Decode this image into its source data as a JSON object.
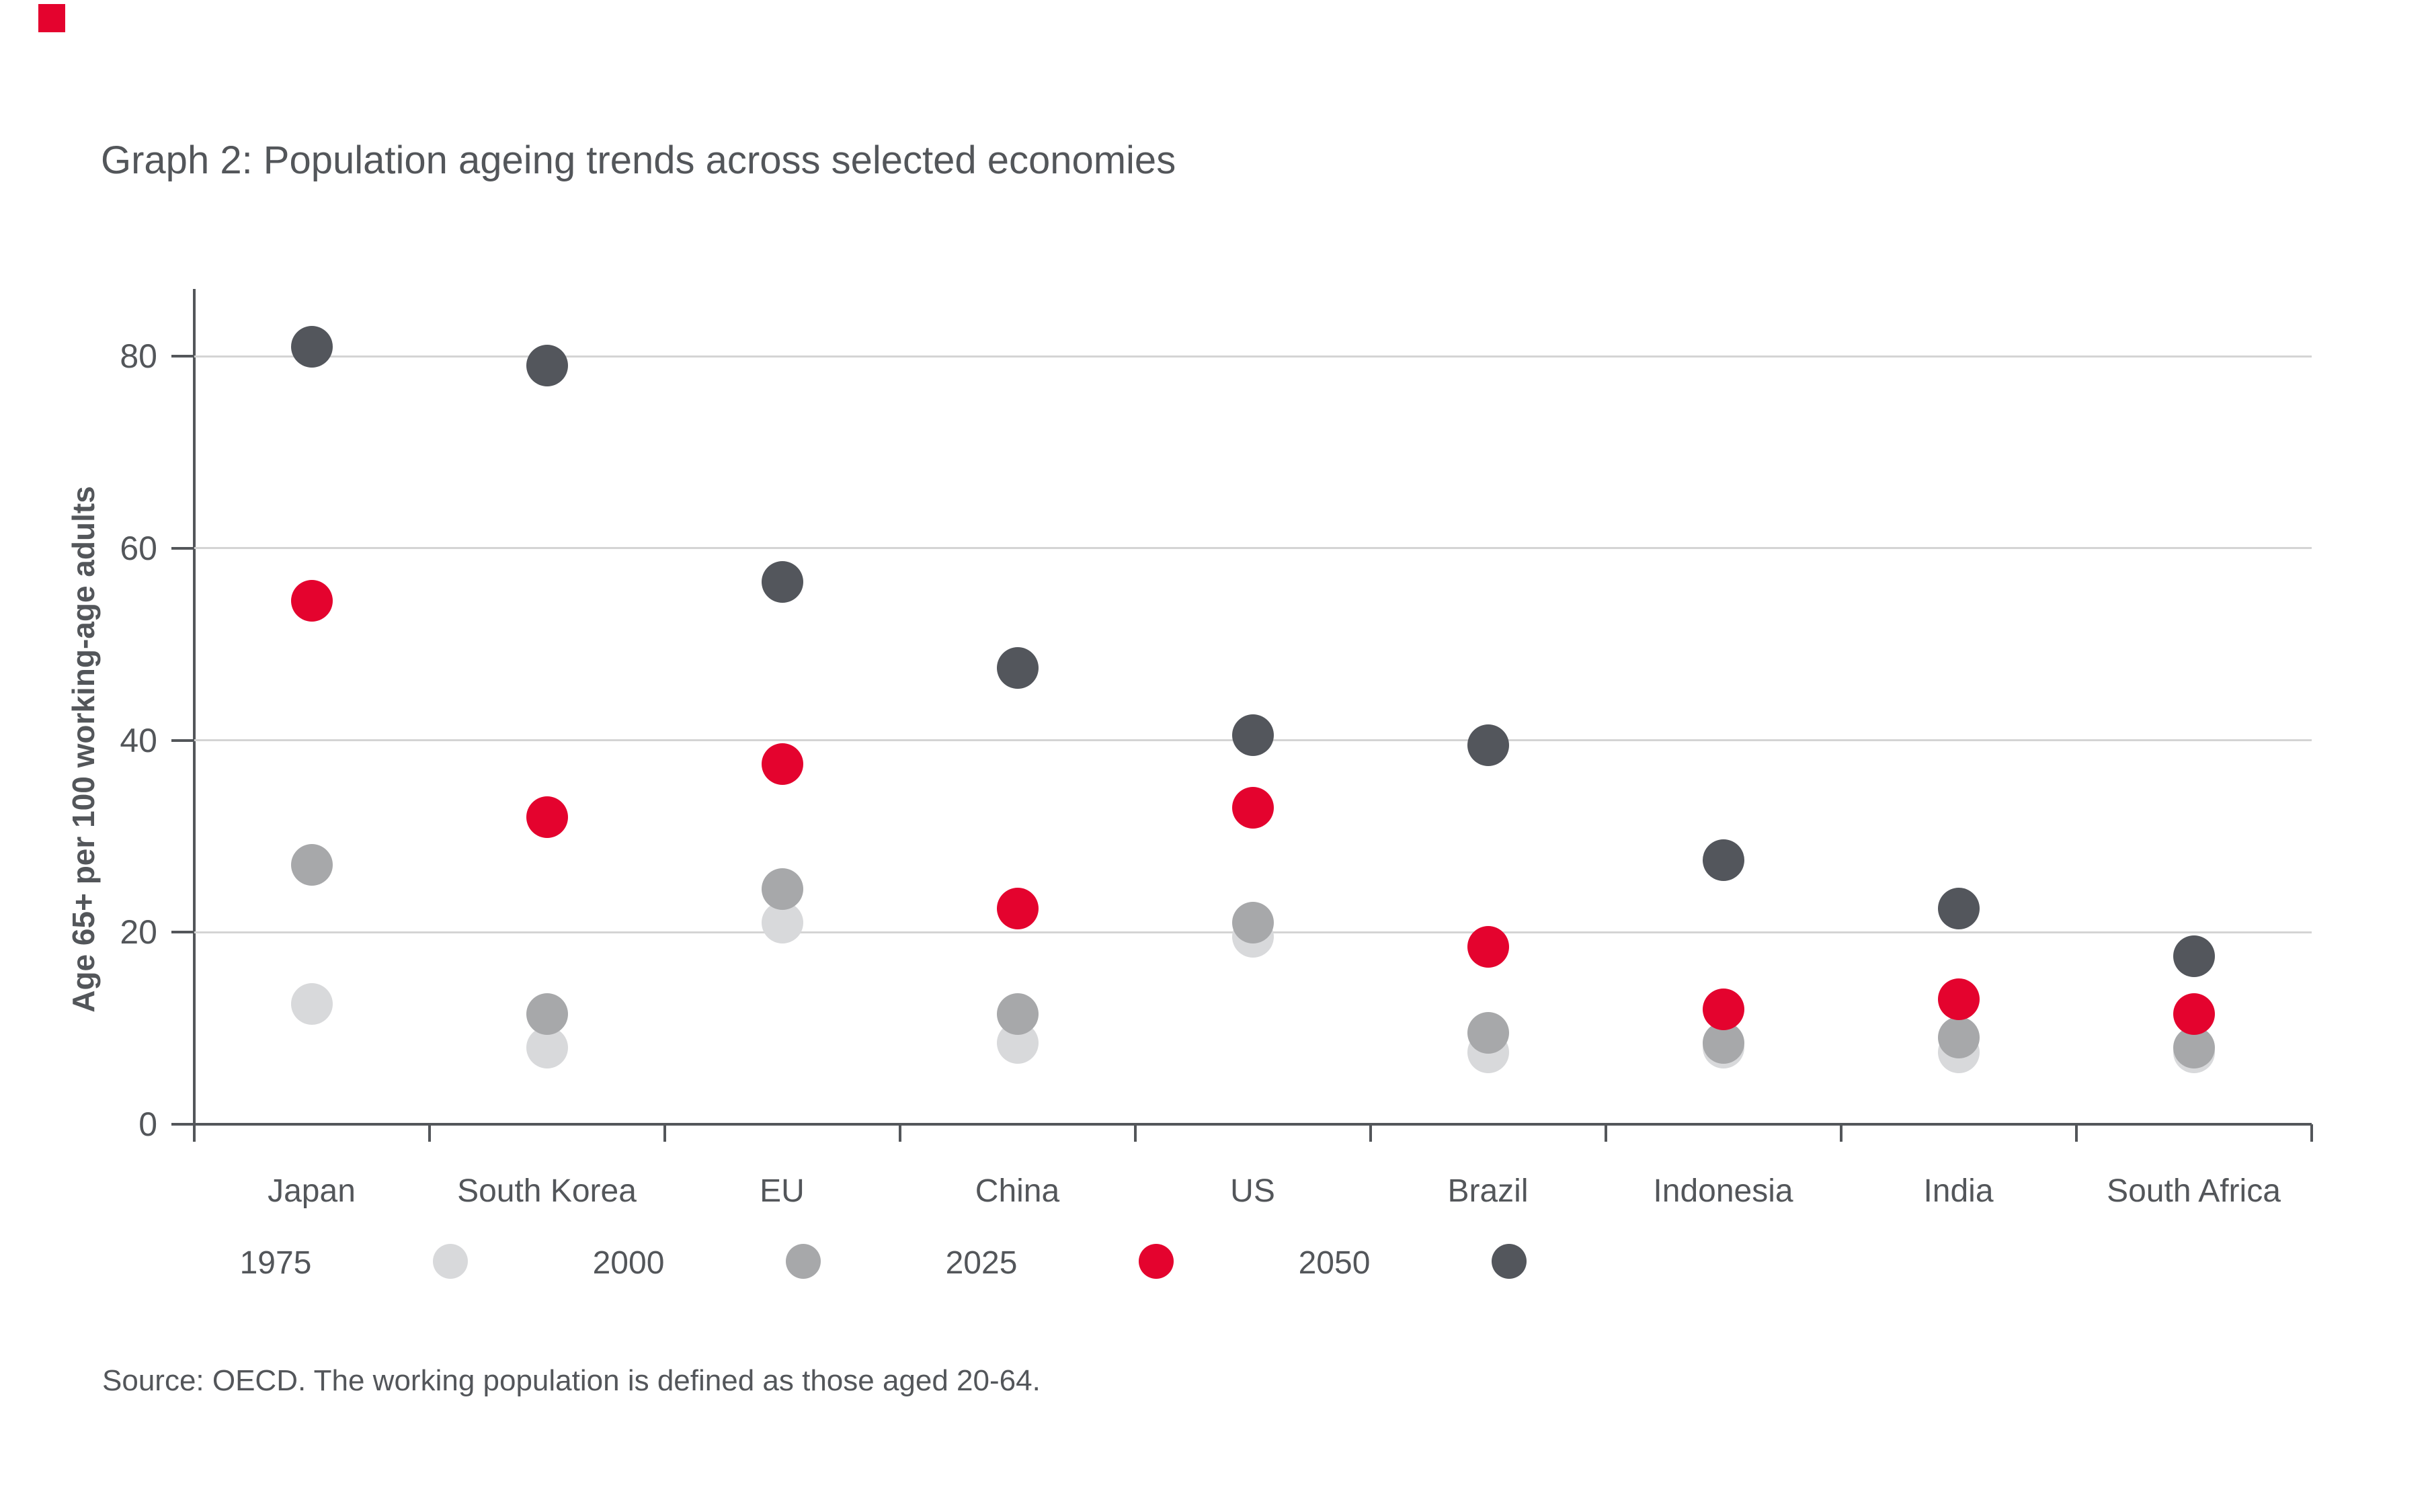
{
  "page": {
    "title": "Graph 2: Population ageing trends across selected economies",
    "source": "Source: OECD. The working population is defined as those aged 20-64.",
    "brand_color": "#E4032E",
    "text_color": "#53565A"
  },
  "chart_data": {
    "type": "scatter",
    "title": "Graph 2: Population ageing trends across selected economies",
    "xlabel": "",
    "ylabel": "Age 65+ per 100 working-age adults",
    "ylim": [
      0,
      87
    ],
    "yticks": [
      0,
      20,
      40,
      60,
      80
    ],
    "grid": "horizontal",
    "gridline_color": "#D4D4D4",
    "axis_color": "#53565A",
    "legend_position": "bottom",
    "categories": [
      "Japan",
      "South Korea",
      "EU",
      "China",
      "US",
      "Brazil",
      "Indonesia",
      "India",
      "South Africa"
    ],
    "series": [
      {
        "name": "1975",
        "color": "#D8D9DB",
        "values": [
          12.5,
          8,
          21,
          8.5,
          19.5,
          7.5,
          8,
          7.5,
          7.5
        ]
      },
      {
        "name": "2000",
        "color": "#A7A8AA",
        "values": [
          27,
          11.5,
          24.5,
          11.5,
          21,
          9.5,
          8.5,
          9,
          8
        ]
      },
      {
        "name": "2025",
        "color": "#E4032E",
        "values": [
          54.5,
          32,
          37.5,
          22.5,
          33,
          18.5,
          12,
          13,
          11.5
        ]
      },
      {
        "name": "2050",
        "color": "#53565C",
        "values": [
          81,
          79,
          56.5,
          47.5,
          40.5,
          39.5,
          27.5,
          22.5,
          17.5
        ]
      }
    ]
  }
}
